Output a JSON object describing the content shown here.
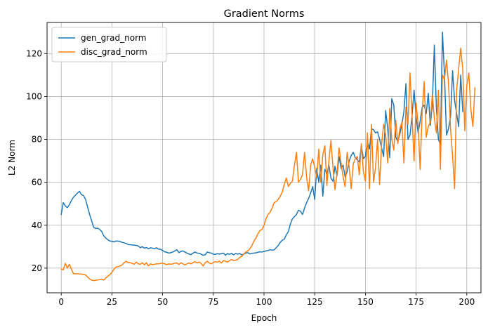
{
  "chart_data": {
    "type": "line",
    "title": "Gradient Norms",
    "xlabel": "Epoch",
    "ylabel": "L2 Norm",
    "xlim": [
      -7,
      207
    ],
    "ylim": [
      8.5,
      134.5
    ],
    "xticks": [
      0,
      25,
      50,
      75,
      100,
      125,
      150,
      175,
      200
    ],
    "yticks": [
      20,
      40,
      60,
      80,
      100,
      120
    ],
    "grid": true,
    "legend": "top-left",
    "series": [
      {
        "name": "gen_grad_norm",
        "color": "#1f77b4",
        "x_start": 0,
        "x_step": 1,
        "values": [
          45.0,
          50.5,
          49.0,
          48.2,
          49.5,
          51.5,
          53.0,
          54.0,
          55.0,
          55.8,
          54.2,
          53.8,
          52.0,
          48.5,
          45.0,
          42.0,
          39.0,
          38.5,
          38.6,
          38.0,
          37.0,
          35.0,
          34.0,
          33.2,
          32.6,
          32.5,
          32.3,
          32.6,
          32.6,
          32.4,
          32.0,
          31.8,
          31.5,
          31.0,
          30.9,
          30.8,
          30.7,
          30.6,
          30.3,
          29.5,
          30.0,
          29.3,
          29.6,
          29.0,
          29.5,
          29.3,
          29.0,
          29.5,
          28.8,
          28.8,
          28.2,
          27.6,
          27.4,
          27.0,
          27.2,
          27.5,
          28.0,
          28.6,
          27.2,
          27.8,
          28.0,
          27.5,
          27.0,
          26.5,
          26.3,
          27.0,
          27.5,
          27.0,
          26.9,
          26.5,
          26.0,
          26.2,
          27.5,
          27.2,
          27.0,
          26.5,
          26.4,
          26.7,
          26.5,
          26.8,
          27.0,
          26.0,
          26.8,
          26.4,
          26.9,
          26.2,
          26.8,
          26.5,
          26.8,
          26.2,
          26.5,
          27.0,
          27.2,
          26.6,
          26.9,
          27.0,
          27.1,
          27.4,
          27.6,
          27.5,
          27.8,
          28.0,
          28.2,
          28.6,
          28.4,
          28.5,
          29.5,
          30.5,
          32.0,
          33.0,
          33.5,
          35.5,
          37.0,
          40.5,
          43.0,
          44.0,
          45.0,
          47.0,
          46.5,
          45.0,
          48.0,
          50.5,
          52.5,
          55.0,
          58.0,
          52.0,
          66.5,
          60.0,
          68.0,
          53.5,
          66.0,
          64.0,
          68.0,
          62.0,
          60.5,
          67.5,
          63.0,
          72.0,
          66.5,
          68.0,
          62.5,
          65.0,
          70.0,
          72.5,
          74.0,
          71.5,
          70.5,
          69.5,
          77.0,
          71.0,
          72.0,
          79.0,
          75.5,
          85.0,
          84.5,
          83.0,
          83.5,
          80.0,
          76.0,
          72.0,
          93.5,
          85.0,
          71.5,
          99.0,
          96.0,
          81.0,
          79.0,
          82.5,
          87.0,
          93.0,
          106.0,
          80.0,
          82.0,
          91.0,
          103.0,
          90.5,
          83.0,
          88.5,
          95.0,
          96.0,
          92.0,
          101.5,
          86.5,
          96.0,
          124.0,
          95.0,
          80.0,
          77.5,
          130.0,
          110.0,
          82.0,
          85.0,
          90.5,
          112.0,
          98.0,
          92.0,
          86.0,
          110.0,
          93.0
        ]
      },
      {
        "name": "disc_grad_norm",
        "color": "#ff7f0e",
        "x_start": 0,
        "x_step": 1,
        "values": [
          19.5,
          19.2,
          22.2,
          20.0,
          21.8,
          19.5,
          17.5,
          17.3,
          17.4,
          17.3,
          17.2,
          17.1,
          16.8,
          15.8,
          15.0,
          14.4,
          14.2,
          14.3,
          14.5,
          14.6,
          14.7,
          14.4,
          15.5,
          16.2,
          17.0,
          18.0,
          19.5,
          20.5,
          20.7,
          21.0,
          21.5,
          22.5,
          23.2,
          22.5,
          22.6,
          22.2,
          21.8,
          22.8,
          22.0,
          21.8,
          22.5,
          21.5,
          22.5,
          21.0,
          22.0,
          21.6,
          21.8,
          22.0,
          22.0,
          22.2,
          22.3,
          22.0,
          21.6,
          22.0,
          21.8,
          22.0,
          22.3,
          22.4,
          21.7,
          22.5,
          22.0,
          21.5,
          22.0,
          22.4,
          22.0,
          22.5,
          23.0,
          22.4,
          22.8,
          22.2,
          21.0,
          22.5,
          23.2,
          22.4,
          22.0,
          22.6,
          23.0,
          22.8,
          23.2,
          22.4,
          23.5,
          23.2,
          22.8,
          23.5,
          24.0,
          23.5,
          23.7,
          24.0,
          25.0,
          25.5,
          26.5,
          27.5,
          28.0,
          29.0,
          30.5,
          32.5,
          34.0,
          36.0,
          37.5,
          38.0,
          40.0,
          43.0,
          45.0,
          46.0,
          48.0,
          50.5,
          51.0,
          52.0,
          53.5,
          55.5,
          59.0,
          62.0,
          58.0,
          59.5,
          60.5,
          68.0,
          74.0,
          60.0,
          61.5,
          63.5,
          74.0,
          62.5,
          56.0,
          68.0,
          71.0,
          67.0,
          62.0,
          75.5,
          60.0,
          73.0,
          77.0,
          58.5,
          70.0,
          79.5,
          67.0,
          56.5,
          64.0,
          76.0,
          69.0,
          62.5,
          58.0,
          74.0,
          67.0,
          57.0,
          68.5,
          71.0,
          72.0,
          63.5,
          78.0,
          65.0,
          60.5,
          83.0,
          57.0,
          87.0,
          60.0,
          67.0,
          80.0,
          59.0,
          78.0,
          87.0,
          82.0,
          69.0,
          94.5,
          80.0,
          75.0,
          89.0,
          78.0,
          85.0,
          88.0,
          69.0,
          95.0,
          87.0,
          111.0,
          91.0,
          70.0,
          97.0,
          87.0,
          66.0,
          93.0,
          107.0,
          81.0,
          86.0,
          88.0,
          101.0,
          90.0,
          83.0,
          103.0,
          66.0,
          110.0,
          108.0,
          117.0,
          106.0,
          85.0,
          72.0,
          57.0,
          103.0,
          113.0,
          122.5,
          113.0,
          84.0,
          105.0,
          111.0,
          94.0,
          86.0,
          104.0
        ]
      }
    ]
  }
}
